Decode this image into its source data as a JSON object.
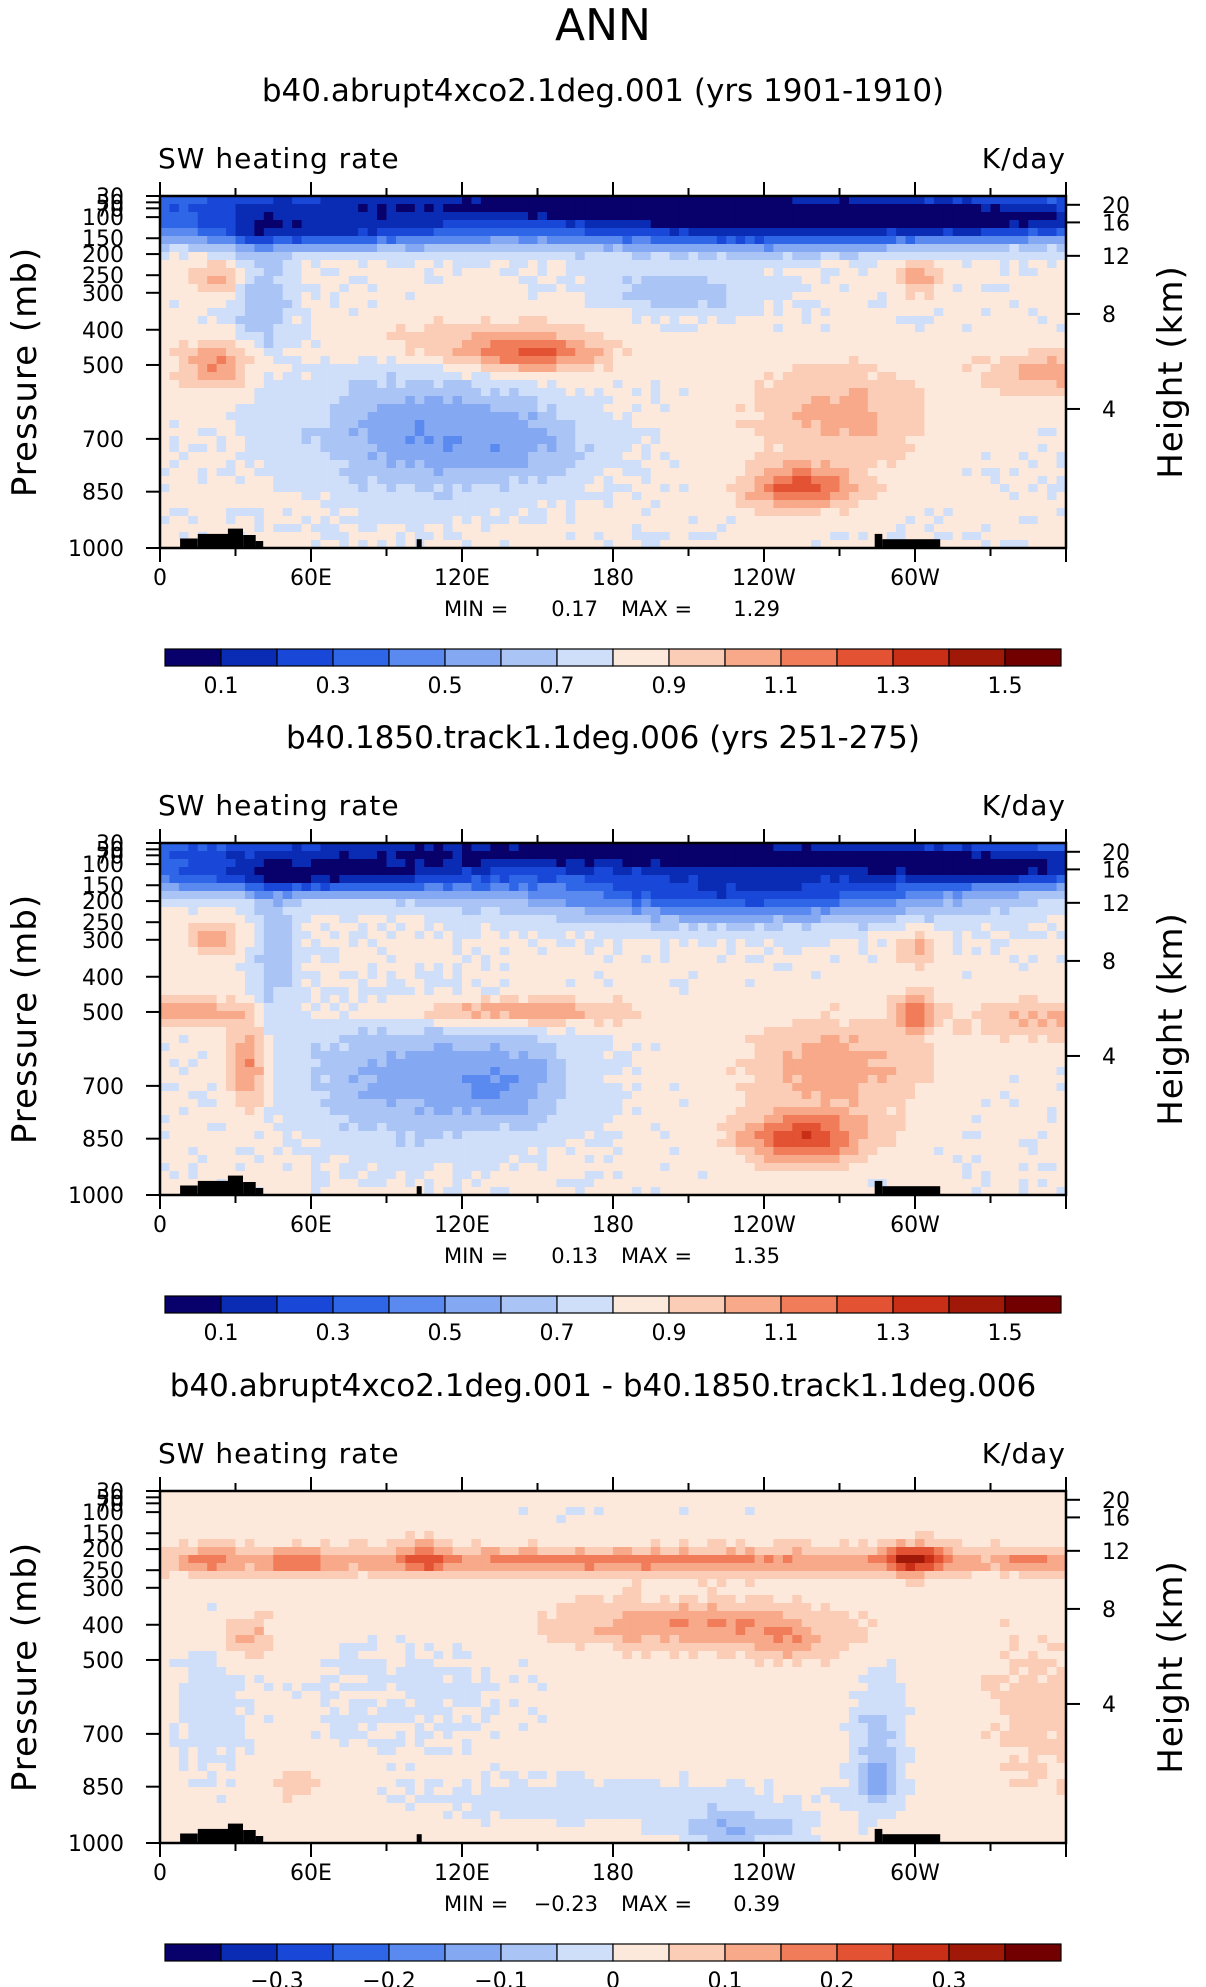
{
  "main_title": "ANN",
  "colors": {
    "cmap": [
      "#08006b",
      "#0a2cb4",
      "#1948d8",
      "#2f66e8",
      "#5a8af0",
      "#84a8f2",
      "#aac4f6",
      "#cfdffa",
      "#fde9dc",
      "#fbcdb6",
      "#f7a98a",
      "#f07c5a",
      "#e35233",
      "#c92e16",
      "#a01808",
      "#730000"
    ],
    "land": "#000000",
    "frame": "#000000"
  },
  "chart_data": [
    {
      "type": "heatmap",
      "title": "b40.abrupt4xco2.1deg.001 (yrs 1901-1910)",
      "left_label": "SW heating rate",
      "right_label": "K/day",
      "ylabel": "Pressure (mb)",
      "y2label": "Height (km)",
      "xlim": [
        0,
        360
      ],
      "x_ticks": [
        {
          "v": 0,
          "t": "0"
        },
        {
          "v": 60,
          "t": "60E"
        },
        {
          "v": 120,
          "t": "120E"
        },
        {
          "v": 180,
          "t": "180"
        },
        {
          "v": 240,
          "t": "120W"
        },
        {
          "v": 300,
          "t": "60W"
        }
      ],
      "y_ticks": [
        "30",
        "50",
        "70",
        "100",
        "150",
        "200",
        "250",
        "300",
        "400",
        "500",
        "700",
        "850",
        "1000"
      ],
      "y2_ticks": [
        "20",
        "16",
        "12",
        "8",
        "4"
      ],
      "min_label": "MIN =",
      "min_value": "0.17",
      "max_label": "MAX =",
      "max_value": "1.29",
      "levels": [
        0.1,
        0.2,
        0.3,
        0.4,
        0.5,
        0.6,
        0.7,
        0.8,
        0.9,
        1.0,
        1.1,
        1.2,
        1.3,
        1.4,
        1.5
      ],
      "colorbar_labels": [
        "0.1",
        "0.3",
        "0.5",
        "0.7",
        "0.9",
        "1.1",
        "1.3",
        "1.5"
      ],
      "colorbar_label_index": [
        0,
        2,
        4,
        6,
        8,
        10,
        12,
        14
      ]
    },
    {
      "type": "heatmap",
      "title": "b40.1850.track1.1deg.006 (yrs 251-275)",
      "left_label": "SW heating rate",
      "right_label": "K/day",
      "ylabel": "Pressure (mb)",
      "y2label": "Height (km)",
      "xlim": [
        0,
        360
      ],
      "x_ticks": [
        {
          "v": 0,
          "t": "0"
        },
        {
          "v": 60,
          "t": "60E"
        },
        {
          "v": 120,
          "t": "120E"
        },
        {
          "v": 180,
          "t": "180"
        },
        {
          "v": 240,
          "t": "120W"
        },
        {
          "v": 300,
          "t": "60W"
        }
      ],
      "y_ticks": [
        "30",
        "50",
        "70",
        "100",
        "150",
        "200",
        "250",
        "300",
        "400",
        "500",
        "700",
        "850",
        "1000"
      ],
      "y2_ticks": [
        "20",
        "16",
        "12",
        "8",
        "4"
      ],
      "min_label": "MIN =",
      "min_value": "0.13",
      "max_label": "MAX =",
      "max_value": "1.35",
      "levels": [
        0.1,
        0.2,
        0.3,
        0.4,
        0.5,
        0.6,
        0.7,
        0.8,
        0.9,
        1.0,
        1.1,
        1.2,
        1.3,
        1.4,
        1.5
      ],
      "colorbar_labels": [
        "0.1",
        "0.3",
        "0.5",
        "0.7",
        "0.9",
        "1.1",
        "1.3",
        "1.5"
      ],
      "colorbar_label_index": [
        0,
        2,
        4,
        6,
        8,
        10,
        12,
        14
      ]
    },
    {
      "type": "heatmap",
      "title": "b40.abrupt4xco2.1deg.001 - b40.1850.track1.1deg.006",
      "left_label": "SW heating rate",
      "right_label": "K/day",
      "ylabel": "Pressure (mb)",
      "y2label": "Height (km)",
      "xlim": [
        0,
        360
      ],
      "x_ticks": [
        {
          "v": 0,
          "t": "0"
        },
        {
          "v": 60,
          "t": "60E"
        },
        {
          "v": 120,
          "t": "120E"
        },
        {
          "v": 180,
          "t": "180"
        },
        {
          "v": 240,
          "t": "120W"
        },
        {
          "v": 300,
          "t": "60W"
        }
      ],
      "y_ticks": [
        "30",
        "50",
        "70",
        "100",
        "150",
        "200",
        "250",
        "300",
        "400",
        "500",
        "700",
        "850",
        "1000"
      ],
      "y2_ticks": [
        "20",
        "16",
        "12",
        "8",
        "4"
      ],
      "min_label": "MIN =",
      "min_value": "−0.23",
      "max_label": "MAX =",
      "max_value": "0.39",
      "levels": [
        -0.35,
        -0.3,
        -0.25,
        -0.2,
        -0.15,
        -0.1,
        -0.05,
        0,
        0.05,
        0.1,
        0.15,
        0.2,
        0.25,
        0.3,
        0.35
      ],
      "colorbar_labels": [
        "−0.3",
        "−0.2",
        "−0.1",
        "0",
        "0.1",
        "0.2",
        "0.3"
      ],
      "colorbar_label_index": [
        1,
        3,
        5,
        7,
        9,
        11,
        13
      ]
    }
  ]
}
